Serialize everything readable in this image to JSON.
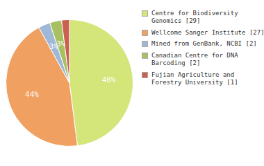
{
  "chart_data": {
    "type": "pie",
    "categories": [
      "Centre for Biodiversity\nGenomics [29]",
      "Wellcome Sanger Institute [27]",
      "Mined from GenBank, NCBI [2]",
      "Canadian Centre for DNA\nBarcoding [2]",
      "Fujian Agriculture and\nForestry University [1]"
    ],
    "values": [
      48,
      44,
      3,
      3,
      2
    ],
    "value_labels": [
      "48%",
      "44%",
      "3%",
      "3%",
      null
    ],
    "colors": [
      "#d4e57a",
      "#f0a060",
      "#a0b8d8",
      "#a8c060",
      "#c96050"
    ],
    "data_labels": true,
    "legend": "right"
  }
}
